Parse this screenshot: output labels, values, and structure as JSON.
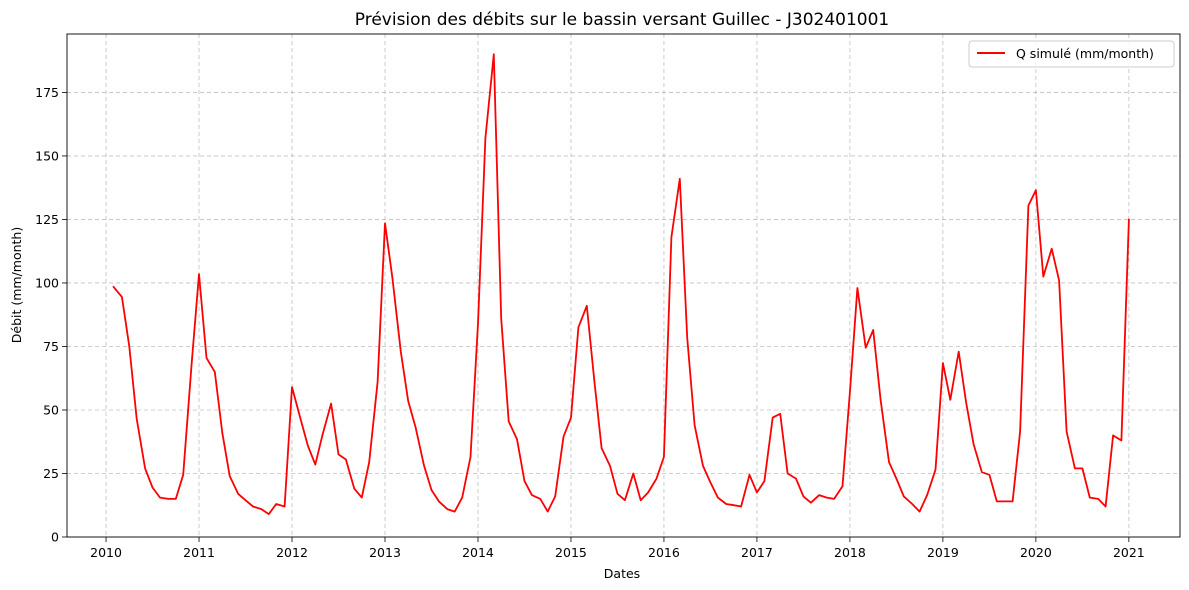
{
  "chart_data": {
    "type": "line",
    "title": "Prévision des débits sur le bassin versant Guillec - J302401001",
    "xlabel": "Dates",
    "ylabel": "Débit (mm/month)",
    "xlim": [
      2009.58,
      2021.55
    ],
    "ylim": [
      0,
      198
    ],
    "xticks": [
      2010,
      2011,
      2012,
      2013,
      2014,
      2015,
      2016,
      2017,
      2018,
      2019,
      2020,
      2021
    ],
    "yticks": [
      0,
      25,
      50,
      75,
      100,
      125,
      150,
      175
    ],
    "grid": true,
    "legend_position": "top-right",
    "series": [
      {
        "name": "Q simulé (mm/month)",
        "color": "#ff0000",
        "x": [
          2010.08,
          2010.17,
          2010.25,
          2010.33,
          2010.42,
          2010.5,
          2010.58,
          2010.67,
          2010.75,
          2010.83,
          2010.92,
          2011.0,
          2011.08,
          2011.17,
          2011.25,
          2011.33,
          2011.42,
          2011.5,
          2011.58,
          2011.67,
          2011.75,
          2011.83,
          2011.92,
          2012.0,
          2012.08,
          2012.17,
          2012.25,
          2012.33,
          2012.42,
          2012.5,
          2012.58,
          2012.67,
          2012.75,
          2012.83,
          2012.92,
          2013.0,
          2013.08,
          2013.17,
          2013.25,
          2013.33,
          2013.42,
          2013.5,
          2013.58,
          2013.67,
          2013.75,
          2013.83,
          2013.92,
          2014.0,
          2014.08,
          2014.17,
          2014.25,
          2014.33,
          2014.42,
          2014.5,
          2014.58,
          2014.67,
          2014.75,
          2014.83,
          2014.92,
          2015.0,
          2015.08,
          2015.17,
          2015.25,
          2015.33,
          2015.42,
          2015.5,
          2015.58,
          2015.67,
          2015.75,
          2015.83,
          2015.92,
          2016.0,
          2016.08,
          2016.17,
          2016.25,
          2016.33,
          2016.42,
          2016.5,
          2016.58,
          2016.67,
          2016.75,
          2016.83,
          2016.92,
          2017.0,
          2017.08,
          2017.17,
          2017.25,
          2017.33,
          2017.42,
          2017.5,
          2017.58,
          2017.67,
          2017.75,
          2017.83,
          2017.92,
          2018.0,
          2018.08,
          2018.17,
          2018.25,
          2018.33,
          2018.42,
          2018.5,
          2018.58,
          2018.67,
          2018.75,
          2018.83,
          2018.92,
          2019.0,
          2019.08,
          2019.17,
          2019.25,
          2019.33,
          2019.42,
          2019.5,
          2019.58,
          2019.67,
          2019.75,
          2019.83,
          2019.92,
          2020.0,
          2020.08,
          2020.17,
          2020.25,
          2020.33,
          2020.42,
          2020.5,
          2020.58,
          2020.67,
          2020.75,
          2020.83,
          2020.92,
          2021.0
        ],
        "values": [
          98.5,
          94.5,
          75,
          46.5,
          27,
          19.5,
          15.5,
          15,
          15,
          24.5,
          68,
          103.5,
          70.5,
          65,
          41,
          24,
          17,
          14.5,
          12,
          11,
          9,
          13,
          12,
          59,
          48,
          36,
          28.5,
          40.5,
          52.5,
          32.5,
          30.5,
          19,
          15.5,
          29.5,
          61,
          123.5,
          102,
          73,
          53.5,
          43,
          28,
          18.5,
          14,
          11,
          10,
          15.5,
          31.5,
          84,
          157,
          190,
          86,
          45.5,
          38.5,
          22,
          16.5,
          15,
          10,
          16,
          39.5,
          47,
          82.5,
          91,
          62,
          35,
          28,
          17,
          14.5,
          25,
          14.5,
          17.5,
          23,
          31.5,
          118,
          141,
          78.5,
          44,
          28,
          21.5,
          15.5,
          13,
          12.5,
          12,
          24.5,
          17.5,
          22,
          47,
          48.5,
          25,
          23,
          16,
          13.5,
          16.5,
          15.5,
          15,
          20,
          57,
          98,
          74.5,
          81.5,
          54,
          29.5,
          23,
          16,
          13,
          10,
          16.5,
          26.5,
          68.5,
          54,
          73,
          53,
          36.5,
          25.5,
          24.5,
          14,
          14,
          14,
          41.5,
          130.5,
          136.5,
          102.5,
          113.5,
          101,
          41.5,
          27,
          27,
          15.5,
          15,
          12,
          40,
          38,
          125
        ]
      }
    ]
  }
}
